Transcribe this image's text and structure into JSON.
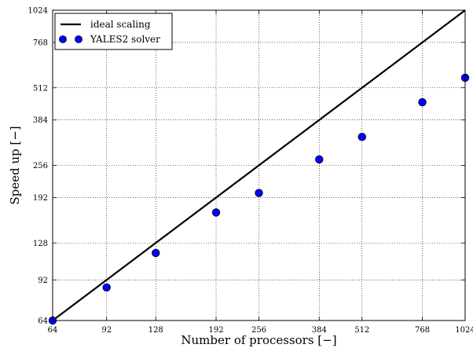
{
  "chart_data": {
    "type": "scatter",
    "xscale": "log2",
    "yscale": "log2",
    "xlabel": "Number of processors [−]",
    "ylabel": "Speed up [−]",
    "xlim": [
      64,
      1024
    ],
    "ylim": [
      64,
      1024
    ],
    "x_ticks": [
      64,
      92,
      128,
      192,
      256,
      384,
      512,
      768,
      1024
    ],
    "y_ticks": [
      64,
      92,
      128,
      192,
      256,
      384,
      512,
      768,
      1024
    ],
    "grid": true,
    "legend_position": "top-left",
    "series": [
      {
        "name": "ideal scaling",
        "kind": "line",
        "color": "#000000",
        "x": [
          64,
          1024
        ],
        "y": [
          64,
          1024
        ]
      },
      {
        "name": "YALES2 solver",
        "kind": "scatter",
        "color": "#0000ff",
        "x": [
          64,
          92,
          128,
          192,
          256,
          384,
          512,
          768,
          1024
        ],
        "y": [
          64,
          86,
          117,
          168,
          200,
          270,
          330,
          450,
          560
        ]
      }
    ]
  }
}
